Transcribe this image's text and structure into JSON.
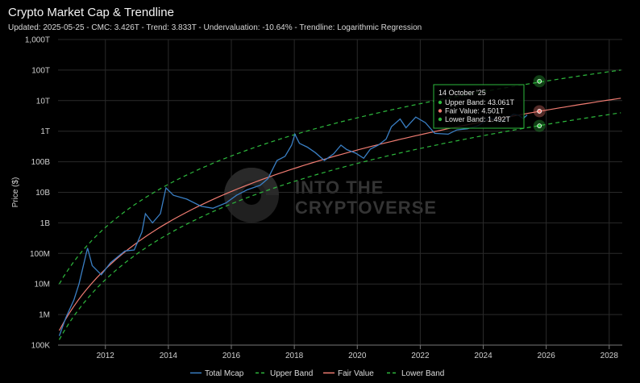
{
  "header": {
    "title": "Crypto Market Cap & Trendline",
    "subtitle": "Updated: 2025-05-25 - CMC: 3.426T - Trend: 3.833T - Undervaluation: -10.64% - Trendline: Logarithmic Regression"
  },
  "watermark": {
    "line1": "INTO THE",
    "line2": "CRYPTOVERSE"
  },
  "chart_data": {
    "type": "line",
    "title": "Crypto Market Cap & Trendline",
    "ylabel": "Price ($)",
    "xlabel": "",
    "y_scale": "log",
    "y_ticks": [
      {
        "value": 100000.0,
        "label": "100K"
      },
      {
        "value": 1000000.0,
        "label": "1M"
      },
      {
        "value": 10000000.0,
        "label": "10M"
      },
      {
        "value": 100000000.0,
        "label": "100M"
      },
      {
        "value": 1000000000.0,
        "label": "1B"
      },
      {
        "value": 10000000000.0,
        "label": "10B"
      },
      {
        "value": 100000000000.0,
        "label": "100B"
      },
      {
        "value": 1000000000000.0,
        "label": "1T"
      },
      {
        "value": 10000000000000.0,
        "label": "10T"
      },
      {
        "value": 100000000000000.0,
        "label": "100T"
      },
      {
        "value": 1000000000000000.0,
        "label": "1,000T"
      }
    ],
    "x_ticks": [
      "2012",
      "2014",
      "2016",
      "2018",
      "2020",
      "2022",
      "2024",
      "2026",
      "2028"
    ],
    "xlim": [
      "2010-07-01",
      "2028-06-01"
    ],
    "ylim": [
      100000,
      1000000000000000.0
    ],
    "grid": true,
    "legend_position": "bottom",
    "series": [
      {
        "name": "Total Mcap",
        "color": "#3a7fc4",
        "style": "solid",
        "x": [
          "2010-07-15",
          "2010-10-01",
          "2011-01-01",
          "2011-03-01",
          "2011-06-08",
          "2011-08-01",
          "2011-11-15",
          "2012-03-01",
          "2012-08-15",
          "2012-12-01",
          "2013-03-01",
          "2013-04-10",
          "2013-07-01",
          "2013-10-01",
          "2013-12-04",
          "2014-03-01",
          "2014-08-01",
          "2015-01-15",
          "2015-06-01",
          "2015-11-01",
          "2016-03-01",
          "2016-07-01",
          "2016-12-01",
          "2017-03-01",
          "2017-06-15",
          "2017-09-15",
          "2017-12-01",
          "2018-01-07",
          "2018-03-01",
          "2018-06-01",
          "2018-09-01",
          "2018-12-15",
          "2019-04-01",
          "2019-06-26",
          "2019-09-01",
          "2019-12-15",
          "2020-03-15",
          "2020-06-01",
          "2020-09-01",
          "2020-12-01",
          "2021-02-01",
          "2021-05-12",
          "2021-07-20",
          "2021-11-10",
          "2022-03-01",
          "2022-06-18",
          "2022-11-20",
          "2023-03-01",
          "2023-07-01",
          "2023-11-01",
          "2024-03-14",
          "2024-08-05",
          "2024-12-17",
          "2025-02-15",
          "2025-04-08",
          "2025-05-25"
        ],
        "y": [
          200000.0,
          800000.0,
          3000000.0,
          10000000.0,
          150000000.0,
          40000000.0,
          20000000.0,
          50000000.0,
          120000000.0,
          130000000.0,
          500000000.0,
          2000000000.0,
          1000000000.0,
          2000000000.0,
          14000000000.0,
          8000000000.0,
          6000000000.0,
          3500000000.0,
          3000000000.0,
          4500000000.0,
          8000000000.0,
          12000000000.0,
          17000000000.0,
          28000000000.0,
          110000000000.0,
          150000000000.0,
          350000000000.0,
          800000000000.0,
          400000000000.0,
          300000000000.0,
          200000000000.0,
          110000000000.0,
          180000000000.0,
          350000000000.0,
          250000000000.0,
          190000000000.0,
          130000000000.0,
          260000000000.0,
          350000000000.0,
          550000000000.0,
          1400000000000.0,
          2500000000000.0,
          1300000000000.0,
          2900000000000.0,
          1900000000000.0,
          850000000000.0,
          800000000000.0,
          1100000000000.0,
          1200000000000.0,
          1500000000000.0,
          2700000000000.0,
          2000000000000.0,
          3600000000000.0,
          3300000000000.0,
          2600000000000.0,
          3400000000000.0
        ]
      },
      {
        "name": "Upper Band",
        "color": "#2db83d",
        "style": "dashed",
        "trend": "log-regression",
        "start": "2010-07-15",
        "end": "2028-05-15",
        "y_start": 10000000.0,
        "y_end": 100000000000000.0
      },
      {
        "name": "Fair Value",
        "color": "#f07c72",
        "style": "solid",
        "trend": "log-regression",
        "start": "2010-07-15",
        "end": "2028-05-15",
        "y_start": 300000.0,
        "y_end": 12000000000000.0
      },
      {
        "name": "Lower Band",
        "color": "#2db83d",
        "style": "dashed",
        "trend": "log-regression",
        "start": "2010-07-15",
        "end": "2028-05-15",
        "y_start": 150000.0,
        "y_end": 4000000000000.0
      }
    ],
    "tooltip": {
      "date": "2025-10-14",
      "title": "14 October '25",
      "rows": [
        {
          "label": "Upper Band: 43.061T",
          "value": 43061000000000.0,
          "color": "#2db83d"
        },
        {
          "label": "Fair Value: 4.501T",
          "value": 4501000000000.0,
          "color": "#f07c72"
        },
        {
          "label": "Lower Band: 1.492T",
          "value": 1492000000000.0,
          "color": "#2db83d"
        }
      ]
    }
  }
}
